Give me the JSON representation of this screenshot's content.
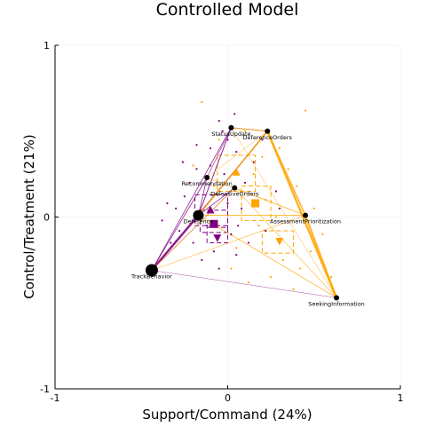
{
  "chart_data": {
    "type": "scatter",
    "title": "Controlled Model",
    "xlabel": "Support/Command (24%)",
    "ylabel": "Control/Treatment (21%)",
    "xlim": [
      -1,
      1
    ],
    "ylim": [
      -1,
      1
    ],
    "xticks": [
      "-1",
      "0",
      "1"
    ],
    "yticks": [
      "-1",
      "0",
      "1"
    ],
    "grid": true,
    "colors": {
      "purple": "#800080",
      "orange": "#FFA500",
      "node": "#000000"
    },
    "nodes": [
      {
        "label": "StatusUpdate",
        "x": 0.02,
        "y": 0.52,
        "size": "small"
      },
      {
        "label": "DeferenceOrders",
        "x": 0.23,
        "y": 0.5,
        "size": "small"
      },
      {
        "label": "Recommendation",
        "x": -0.12,
        "y": 0.23,
        "size": "small"
      },
      {
        "label": "DefensiveOrders",
        "x": 0.04,
        "y": 0.17,
        "size": "small"
      },
      {
        "label": "Deference",
        "x": -0.17,
        "y": 0.01,
        "size": "medium"
      },
      {
        "label": "AssessmentPrioritization",
        "x": 0.45,
        "y": 0.01,
        "size": "small"
      },
      {
        "label": "TrackBehavior",
        "x": -0.44,
        "y": -0.31,
        "size": "large"
      },
      {
        "label": "SeekingInformation",
        "x": 0.63,
        "y": -0.47,
        "size": "small"
      }
    ],
    "groups": [
      {
        "name": "purple",
        "color": "#800080",
        "centroids": [
          {
            "shape": "triangle-up",
            "x": -0.1,
            "y": 0.04
          },
          {
            "shape": "square",
            "x": -0.08,
            "y": -0.04
          },
          {
            "shape": "triangle-down",
            "x": -0.06,
            "y": -0.12
          }
        ],
        "boxes": [
          {
            "x": [
              -0.19,
              0.0
            ],
            "y": [
              -0.05,
              0.13
            ]
          },
          {
            "x": [
              -0.16,
              0.0
            ],
            "y": [
              -0.09,
              0.04
            ]
          },
          {
            "x": [
              -0.12,
              0.0
            ],
            "y": [
              -0.15,
              -0.06
            ]
          }
        ],
        "edges": [
          {
            "from": "TrackBehavior",
            "to": "Deference",
            "weight": 2.5
          },
          {
            "from": "TrackBehavior",
            "to": "StatusUpdate",
            "weight": 0.8
          },
          {
            "from": "TrackBehavior",
            "to": "Recommendation",
            "weight": 0.8
          },
          {
            "from": "TrackBehavior",
            "to": "DefensiveOrders",
            "weight": 0.6
          },
          {
            "from": "TrackBehavior",
            "to": "DeferenceOrders",
            "weight": 0.6
          },
          {
            "from": "Deference",
            "to": "StatusUpdate",
            "weight": 1.0
          },
          {
            "from": "Deference",
            "to": "DeferenceOrders",
            "weight": 1.0
          },
          {
            "from": "Deference",
            "to": "Recommendation",
            "weight": 0.8
          },
          {
            "from": "Deference",
            "to": "DefensiveOrders",
            "weight": 0.8
          },
          {
            "from": "StatusUpdate",
            "to": "DeferenceOrders",
            "weight": 0.8
          },
          {
            "from": "Recommendation",
            "to": "StatusUpdate",
            "weight": 0.6
          },
          {
            "from": "TrackBehavior",
            "to": "SeekingInformation",
            "weight": 0.4
          }
        ],
        "points": [
          [
            -0.05,
            0.56
          ],
          [
            0.0,
            0.45
          ],
          [
            -0.1,
            0.4
          ],
          [
            -0.03,
            0.5
          ],
          [
            0.05,
            0.38
          ],
          [
            -0.22,
            0.2
          ],
          [
            -0.25,
            0.12
          ],
          [
            -0.18,
            0.28
          ],
          [
            -0.3,
            0.05
          ],
          [
            -0.35,
            0.08
          ],
          [
            -0.38,
            -0.02
          ],
          [
            -0.28,
            -0.08
          ],
          [
            -0.2,
            -0.15
          ],
          [
            -0.15,
            -0.25
          ],
          [
            -0.05,
            -0.3
          ],
          [
            0.05,
            -0.22
          ],
          [
            0.02,
            -0.1
          ],
          [
            0.08,
            0.05
          ],
          [
            0.1,
            0.2
          ],
          [
            0.15,
            0.32
          ],
          [
            0.2,
            0.45
          ],
          [
            0.28,
            0.15
          ],
          [
            0.3,
            0.05
          ],
          [
            -0.1,
            0.3
          ],
          [
            -0.08,
            -0.2
          ],
          [
            -0.12,
            -0.05
          ],
          [
            0.0,
            0.08
          ],
          [
            0.06,
            -0.05
          ],
          [
            -0.02,
            0.25
          ],
          [
            0.12,
            -0.15
          ],
          [
            -0.26,
            0.32
          ],
          [
            -0.33,
            -0.15
          ],
          [
            0.22,
            -0.08
          ],
          [
            -0.18,
            0.42
          ],
          [
            0.04,
            0.6
          ]
        ]
      },
      {
        "name": "orange",
        "color": "#FFA500",
        "centroids": [
          {
            "shape": "triangle-up",
            "x": 0.05,
            "y": 0.26
          },
          {
            "shape": "square",
            "x": 0.16,
            "y": 0.08
          },
          {
            "shape": "triangle-down",
            "x": 0.3,
            "y": -0.14
          }
        ],
        "boxes": [
          {
            "x": [
              -0.06,
              0.16
            ],
            "y": [
              0.15,
              0.36
            ]
          },
          {
            "x": [
              0.08,
              0.25
            ],
            "y": [
              -0.02,
              0.18
            ]
          },
          {
            "x": [
              0.2,
              0.38
            ],
            "y": [
              -0.21,
              -0.08
            ]
          }
        ],
        "edges": [
          {
            "from": "DeferenceOrders",
            "to": "SeekingInformation",
            "weight": 2.5
          },
          {
            "from": "AssessmentPrioritization",
            "to": "SeekingInformation",
            "weight": 2.0
          },
          {
            "from": "DeferenceOrders",
            "to": "AssessmentPrioritization",
            "weight": 1.5
          },
          {
            "from": "StatusUpdate",
            "to": "DeferenceOrders",
            "weight": 1.0
          },
          {
            "from": "Deference",
            "to": "DeferenceOrders",
            "weight": 1.5
          },
          {
            "from": "Deference",
            "to": "AssessmentPrioritization",
            "weight": 0.8
          },
          {
            "from": "Deference",
            "to": "SeekingInformation",
            "weight": 0.8
          },
          {
            "from": "TrackBehavior",
            "to": "AssessmentPrioritization",
            "weight": 0.6
          },
          {
            "from": "TrackBehavior",
            "to": "DefensiveOrders",
            "weight": 0.6
          },
          {
            "from": "Recommendation",
            "to": "AssessmentPrioritization",
            "weight": 0.6
          },
          {
            "from": "DefensiveOrders",
            "to": "SeekingInformation",
            "weight": 0.6
          },
          {
            "from": "StatusUpdate",
            "to": "SeekingInformation",
            "weight": 0.5
          },
          {
            "from": "Recommendation",
            "to": "DeferenceOrders",
            "weight": 0.5
          },
          {
            "from": "DefensiveOrders",
            "to": "AssessmentPrioritization",
            "weight": 0.5
          }
        ],
        "points": [
          [
            -0.15,
            0.67
          ],
          [
            0.45,
            0.62
          ],
          [
            0.2,
            0.35
          ],
          [
            0.35,
            0.28
          ],
          [
            0.4,
            0.18
          ],
          [
            0.5,
            0.05
          ],
          [
            0.55,
            -0.1
          ],
          [
            0.42,
            -0.3
          ],
          [
            0.38,
            -0.42
          ],
          [
            0.25,
            -0.35
          ],
          [
            0.12,
            -0.38
          ],
          [
            0.02,
            -0.3
          ],
          [
            0.1,
            0.5
          ],
          [
            0.3,
            0.4
          ],
          [
            -0.05,
            0.45
          ],
          [
            0.18,
            -0.05
          ],
          [
            0.28,
            0.0
          ],
          [
            -0.08,
            0.18
          ],
          [
            -0.2,
            0.3
          ],
          [
            0.48,
            -0.2
          ],
          [
            0.32,
            -0.25
          ],
          [
            0.15,
            0.25
          ],
          [
            0.05,
            -0.18
          ],
          [
            0.6,
            -0.35
          ],
          [
            0.22,
            0.1
          ]
        ]
      }
    ]
  }
}
